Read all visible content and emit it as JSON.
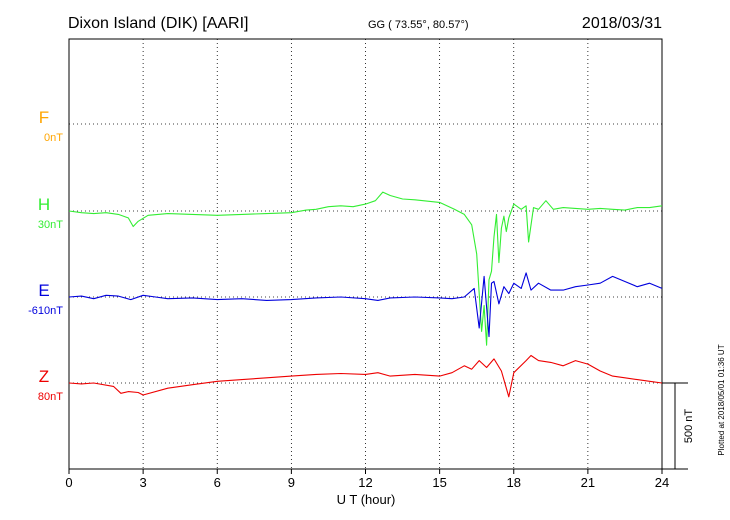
{
  "header": {
    "station": "Dixon Island (DIK)  [AARI]",
    "coords": "GG ( 73.55°,  80.57°)",
    "date": "2018/03/31"
  },
  "footer": {
    "plotted": "Plotted at 2018/05/01 01:36 UT"
  },
  "scale_bar_label": "500 nT",
  "chart_data": {
    "type": "line",
    "xlabel": "U T (hour)",
    "xlim": [
      0,
      24
    ],
    "x_ticks": [
      0,
      3,
      6,
      9,
      12,
      15,
      18,
      21,
      24
    ],
    "x_tick_labels": [
      "0",
      "3",
      "6",
      "9",
      "12",
      "15",
      "18",
      "21",
      "24"
    ],
    "grid": true,
    "scale_bar_nT": 500,
    "series": [
      {
        "name": "F",
        "offset_label": "0nT",
        "color": "#ffa500",
        "x": [],
        "y": []
      },
      {
        "name": "H",
        "offset_label": "30nT",
        "color": "#33ee33",
        "x": [
          0,
          0.5,
          1.0,
          1.5,
          2.0,
          2.4,
          2.6,
          2.8,
          3.2,
          4.0,
          5.0,
          6.0,
          7.0,
          8.0,
          9.0,
          9.6,
          10.0,
          10.5,
          11.0,
          11.5,
          12.0,
          12.4,
          12.7,
          13.0,
          13.5,
          14.0,
          15.0,
          15.6,
          16.0,
          16.3,
          16.5,
          16.6,
          16.7,
          16.8,
          16.9,
          17.0,
          17.1,
          17.2,
          17.3,
          17.4,
          17.5,
          17.6,
          17.7,
          17.8,
          18.0,
          18.3,
          18.5,
          18.6,
          18.8,
          19.0,
          19.3,
          19.6,
          20.0,
          20.5,
          21.0,
          21.5,
          22.0,
          22.5,
          23.0,
          23.5,
          24.0
        ],
        "y": [
          0,
          -10,
          -15,
          -10,
          -20,
          -40,
          -90,
          -60,
          -25,
          -15,
          -20,
          -25,
          -20,
          -15,
          -10,
          5,
          10,
          25,
          30,
          25,
          40,
          60,
          110,
          90,
          70,
          65,
          50,
          10,
          -20,
          -80,
          -250,
          -480,
          -700,
          -550,
          -780,
          -400,
          -350,
          -150,
          -20,
          -300,
          -100,
          -30,
          -120,
          -40,
          40,
          10,
          30,
          -180,
          20,
          10,
          60,
          10,
          20,
          15,
          10,
          15,
          10,
          5,
          20,
          20,
          30
        ]
      },
      {
        "name": "E",
        "offset_label": "-610nT",
        "color": "#0000dd",
        "x": [
          0,
          0.5,
          1.0,
          1.5,
          2.0,
          2.5,
          3.0,
          3.5,
          4.0,
          5.0,
          6.0,
          7.0,
          8.0,
          9.0,
          10.0,
          11.0,
          12.0,
          12.5,
          13.0,
          14.0,
          15.0,
          15.5,
          16.0,
          16.4,
          16.6,
          16.8,
          17.0,
          17.1,
          17.2,
          17.4,
          17.6,
          17.8,
          18.0,
          18.3,
          18.5,
          18.7,
          19.0,
          19.5,
          20.0,
          20.5,
          21.0,
          21.5,
          22.0,
          22.5,
          23.0,
          23.5,
          24.0
        ],
        "y": [
          0,
          5,
          -10,
          10,
          5,
          -15,
          10,
          0,
          -10,
          -5,
          -15,
          -10,
          -20,
          -15,
          -5,
          0,
          -10,
          -20,
          -5,
          0,
          -5,
          -10,
          0,
          50,
          -180,
          120,
          -230,
          80,
          90,
          -40,
          60,
          20,
          80,
          50,
          140,
          40,
          80,
          40,
          40,
          60,
          70,
          80,
          120,
          90,
          60,
          80,
          50
        ]
      },
      {
        "name": "Z",
        "offset_label": "80nT",
        "color": "#ee0000",
        "x": [
          0,
          0.5,
          1.0,
          1.8,
          2.1,
          2.4,
          2.8,
          3.0,
          4.0,
          5.0,
          6.0,
          7.0,
          8.0,
          9.0,
          10.0,
          11.0,
          12.0,
          12.5,
          13.0,
          14.0,
          15.0,
          15.5,
          16.0,
          16.3,
          16.6,
          16.9,
          17.2,
          17.5,
          17.8,
          18.0,
          18.5,
          18.7,
          19.0,
          19.5,
          20.0,
          20.5,
          21.0,
          21.5,
          22.0,
          22.5,
          23.0,
          23.5,
          24.0
        ],
        "y": [
          0,
          -5,
          0,
          -20,
          -60,
          -50,
          -55,
          -70,
          -30,
          -10,
          10,
          20,
          30,
          40,
          50,
          55,
          50,
          60,
          40,
          50,
          40,
          60,
          100,
          80,
          130,
          90,
          140,
          70,
          -80,
          60,
          130,
          160,
          130,
          120,
          100,
          130,
          110,
          70,
          40,
          30,
          20,
          10,
          0
        ]
      }
    ]
  }
}
